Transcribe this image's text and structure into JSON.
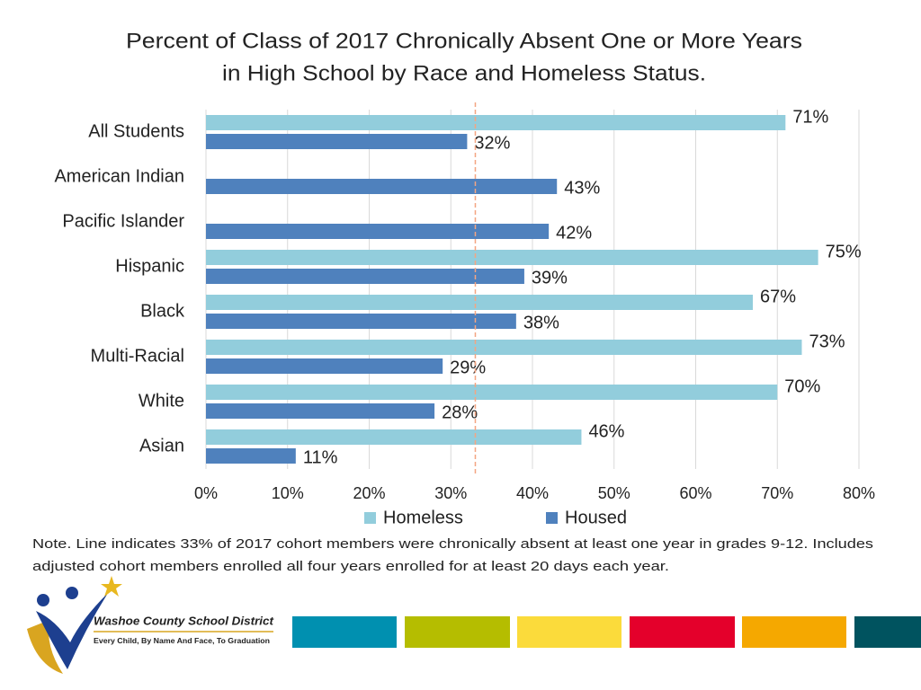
{
  "chart_data": {
    "type": "hbar",
    "title": [
      "Percent of Class of 2017 Chronically Absent One or More Years",
      "in High School by Race and Homeless Status."
    ],
    "categories": [
      "All Students",
      "American Indian",
      "Pacific Islander",
      "Hispanic",
      "Black",
      "Multi-Racial",
      "White",
      "Asian"
    ],
    "series": [
      {
        "name": "Homeless",
        "color": "#92cddc",
        "values": [
          71,
          null,
          null,
          75,
          67,
          73,
          70,
          46
        ],
        "value_labels": [
          "71%",
          null,
          null,
          "75%",
          "67%",
          "73%",
          "70%",
          "46%"
        ]
      },
      {
        "name": "Housed",
        "color": "#4f81bd",
        "values": [
          32,
          43,
          42,
          39,
          38,
          29,
          28,
          11
        ],
        "value_labels": [
          "32%",
          "43%",
          "42%",
          "39%",
          "38%",
          "29%",
          "28%",
          "11%"
        ]
      }
    ],
    "xlim": [
      0,
      80
    ],
    "xticks": [
      {
        "value": 0,
        "label": "0%"
      },
      {
        "value": 10,
        "label": "10%"
      },
      {
        "value": 20,
        "label": "20%"
      },
      {
        "value": 30,
        "label": "30%"
      },
      {
        "value": 40,
        "label": "40%"
      },
      {
        "value": 50,
        "label": "50%"
      },
      {
        "value": 60,
        "label": "60%"
      },
      {
        "value": 70,
        "label": "70%"
      },
      {
        "value": 80,
        "label": "80%"
      }
    ],
    "grid": true,
    "reference_line": {
      "value": 33,
      "color": "#f4a582"
    },
    "note": [
      "Note. Line indicates 33% of 2017 cohort members were chronically absent at least one year in grades 9-12. Includes",
      "adjusted cohort members enrolled all four years enrolled for at least 20 days each year."
    ]
  },
  "logo": {
    "name": "Washoe County School District",
    "tagline": "Every Child, By Name And Face, To Graduation"
  }
}
